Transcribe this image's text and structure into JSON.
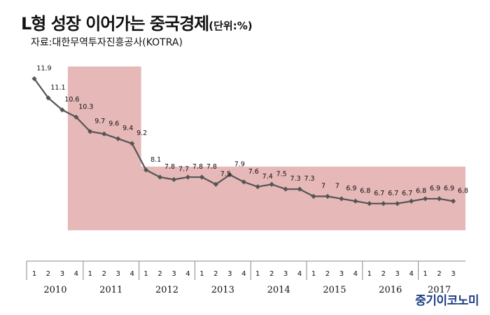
{
  "title": "L형 성장 이어가는 중국경제",
  "title_unit": "(단위:%)",
  "source": "자료:대한무역투자진흥공사(KOTRA)",
  "brand": "중기이코노미",
  "colors": {
    "line": "#555555",
    "marker": "#555555",
    "highlight_fill": "#e6b8b8",
    "axis": "#888888",
    "text": "#111111",
    "brand": "#1f3f86"
  },
  "chart_data": {
    "type": "line",
    "title": "L형 성장 이어가는 중국경제",
    "unit": "(단위:%)",
    "quarter_labels": [
      "1",
      "2",
      "3",
      "4"
    ],
    "years": [
      "2010",
      "2011",
      "2012",
      "2013",
      "2014",
      "2015",
      "2016",
      "2017"
    ],
    "x": [
      "2010Q1",
      "2010Q2",
      "2010Q3",
      "2010Q4",
      "2011Q1",
      "2011Q2",
      "2011Q3",
      "2011Q4",
      "2012Q1",
      "2012Q2",
      "2012Q3",
      "2012Q4",
      "2013Q1",
      "2013Q2",
      "2013Q3",
      "2013Q4",
      "2014Q1",
      "2014Q2",
      "2014Q3",
      "2014Q4",
      "2015Q1",
      "2015Q2",
      "2015Q3",
      "2015Q4",
      "2016Q1",
      "2016Q2",
      "2016Q3",
      "2016Q4",
      "2017Q1",
      "2017Q2",
      "2017Q3"
    ],
    "values": [
      11.9,
      11.1,
      10.6,
      10.3,
      9.7,
      9.6,
      9.4,
      9.2,
      8.1,
      7.8,
      7.7,
      7.8,
      7.8,
      7.5,
      7.9,
      7.6,
      7.4,
      7.5,
      7.3,
      7.3,
      7.0,
      7.0,
      6.9,
      6.8,
      6.7,
      6.7,
      6.7,
      6.8,
      6.9,
      6.9,
      6.8
    ],
    "value_labels": [
      "11.9",
      "11.1",
      "10.6",
      "10.3",
      "9.7",
      "9.6",
      "9.4",
      "9.2",
      "8.1",
      "7.8",
      "7.7",
      "7.8",
      "7.8",
      "7.5",
      "7.9",
      "7.6",
      "7.4",
      "7.5",
      "7.3",
      "7.3",
      "7",
      "7",
      "6.9",
      "6.8",
      "6.7",
      "6.7",
      "6.7",
      "6.8",
      "6.9",
      "6.9",
      "6.8"
    ],
    "highlight_spans": [
      {
        "from": "2010Q4",
        "to": "2011Q4"
      },
      {
        "from": "2012Q1",
        "to": "2017Q3"
      }
    ],
    "grid": false,
    "legend": "none"
  }
}
